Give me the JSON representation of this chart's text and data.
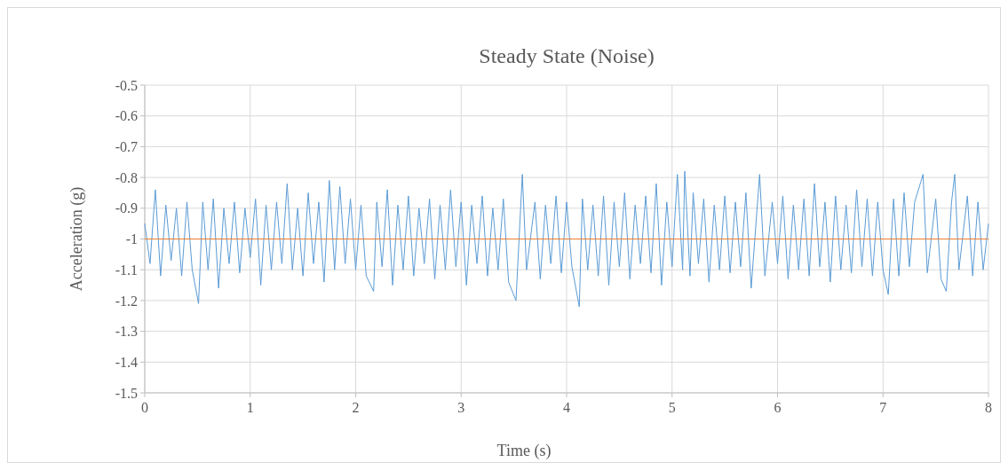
{
  "chart_data": {
    "type": "line",
    "title": "Steady State (Noise)",
    "xlabel": "Time (s)",
    "ylabel": "Acceleration (g)",
    "xlim": [
      0,
      8
    ],
    "xticks": [
      0,
      1,
      2,
      3,
      4,
      5,
      6,
      7,
      8
    ],
    "ylim": [
      -1.5,
      -0.5
    ],
    "yticks": [
      {
        "value": -1.5,
        "label": "-1.5"
      },
      {
        "value": -1.4,
        "label": "-1.4"
      },
      {
        "value": -1.3,
        "label": "-1.3"
      },
      {
        "value": -1.2,
        "label": "-1.2"
      },
      {
        "value": -1.1,
        "label": "-1.1"
      },
      {
        "value": -1,
        "label": "-1"
      },
      {
        "value": -0.9,
        "label": "-0.9"
      },
      {
        "value": -0.8,
        "label": "-0.8"
      },
      {
        "value": -0.7,
        "label": "-0.7"
      },
      {
        "value": -0.6,
        "label": "-0.6"
      },
      {
        "value": -0.5,
        "label": "-0.5"
      }
    ],
    "grid": true,
    "marker": "none",
    "line_style": "solid",
    "series": [
      {
        "color": "#5b9bd5",
        "x": [
          0,
          0.05,
          0.1,
          0.15,
          0.2,
          0.25,
          0.3,
          0.35,
          0.4,
          0.45,
          0.51,
          0.55,
          0.6,
          0.65,
          0.7,
          0.75,
          0.8,
          0.85,
          0.9,
          0.95,
          1.0,
          1.05,
          1.1,
          1.15,
          1.2,
          1.25,
          1.3,
          1.35,
          1.4,
          1.45,
          1.5,
          1.55,
          1.6,
          1.65,
          1.7,
          1.75,
          1.8,
          1.85,
          1.9,
          1.95,
          2.0,
          2.05,
          2.1,
          2.17,
          2.2,
          2.25,
          2.3,
          2.35,
          2.4,
          2.45,
          2.5,
          2.55,
          2.6,
          2.65,
          2.7,
          2.75,
          2.8,
          2.85,
          2.9,
          2.95,
          3.0,
          3.05,
          3.1,
          3.15,
          3.2,
          3.25,
          3.3,
          3.35,
          3.4,
          3.45,
          3.52,
          3.58,
          3.62,
          3.7,
          3.75,
          3.8,
          3.85,
          3.9,
          3.95,
          4.0,
          4.05,
          4.12,
          4.15,
          4.2,
          4.25,
          4.3,
          4.35,
          4.4,
          4.45,
          4.5,
          4.55,
          4.6,
          4.65,
          4.7,
          4.75,
          4.8,
          4.85,
          4.9,
          4.95,
          5.0,
          5.05,
          5.1,
          5.12,
          5.17,
          5.2,
          5.25,
          5.3,
          5.35,
          5.4,
          5.45,
          5.5,
          5.55,
          5.6,
          5.65,
          5.7,
          5.75,
          5.83,
          5.88,
          5.95,
          6.0,
          6.05,
          6.1,
          6.15,
          6.2,
          6.25,
          6.3,
          6.35,
          6.4,
          6.45,
          6.5,
          6.55,
          6.6,
          6.65,
          6.7,
          6.75,
          6.8,
          6.85,
          6.9,
          6.95,
          7.0,
          7.05,
          7.1,
          7.15,
          7.2,
          7.25,
          7.3,
          7.38,
          7.42,
          7.5,
          7.55,
          7.6,
          7.65,
          7.68,
          7.72,
          7.8,
          7.85,
          7.9,
          7.95,
          8.0
        ],
        "values": [
          -0.95,
          -1.08,
          -0.84,
          -1.12,
          -0.89,
          -1.07,
          -0.9,
          -1.12,
          -0.88,
          -1.1,
          -1.21,
          -0.88,
          -1.1,
          -0.87,
          -1.16,
          -0.9,
          -1.08,
          -0.88,
          -1.11,
          -0.9,
          -1.06,
          -0.87,
          -1.15,
          -0.89,
          -1.1,
          -0.88,
          -1.08,
          -0.82,
          -1.1,
          -0.9,
          -1.12,
          -0.85,
          -1.08,
          -0.88,
          -1.14,
          -0.81,
          -1.1,
          -0.83,
          -1.08,
          -0.87,
          -1.1,
          -0.89,
          -1.12,
          -1.17,
          -0.88,
          -1.09,
          -0.84,
          -1.15,
          -0.89,
          -1.1,
          -0.86,
          -1.12,
          -0.9,
          -1.08,
          -0.87,
          -1.13,
          -0.89,
          -1.1,
          -0.84,
          -1.09,
          -0.88,
          -1.15,
          -0.89,
          -1.08,
          -0.86,
          -1.12,
          -0.9,
          -1.1,
          -0.87,
          -1.14,
          -1.2,
          -0.79,
          -1.1,
          -0.88,
          -1.13,
          -0.89,
          -1.08,
          -0.86,
          -1.11,
          -0.88,
          -1.09,
          -1.22,
          -0.87,
          -1.1,
          -0.89,
          -1.12,
          -0.86,
          -1.15,
          -0.88,
          -1.09,
          -0.85,
          -1.13,
          -0.89,
          -1.08,
          -0.86,
          -1.11,
          -0.82,
          -1.15,
          -0.88,
          -1.09,
          -0.79,
          -1.1,
          -0.78,
          -1.12,
          -0.85,
          -1.08,
          -0.87,
          -1.14,
          -0.89,
          -1.1,
          -0.86,
          -1.11,
          -0.88,
          -1.09,
          -0.85,
          -1.16,
          -0.79,
          -1.12,
          -0.88,
          -1.08,
          -0.86,
          -1.13,
          -0.89,
          -1.1,
          -0.87,
          -1.12,
          -0.82,
          -1.09,
          -0.88,
          -1.14,
          -0.86,
          -1.1,
          -0.89,
          -1.11,
          -0.84,
          -1.09,
          -0.87,
          -1.12,
          -0.88,
          -1.1,
          -1.18,
          -0.87,
          -1.12,
          -0.85,
          -1.09,
          -0.88,
          -0.79,
          -1.11,
          -0.87,
          -1.13,
          -1.17,
          -0.88,
          -0.79,
          -1.1,
          -0.86,
          -1.12,
          -0.88,
          -1.1,
          -0.95
        ]
      },
      {
        "color": "#ed7d31",
        "x": [
          0,
          8
        ],
        "values": [
          -1,
          -1
        ]
      }
    ]
  }
}
